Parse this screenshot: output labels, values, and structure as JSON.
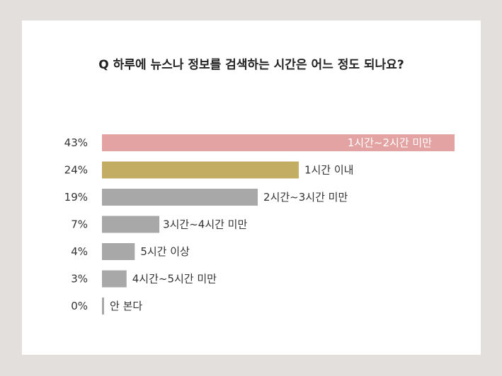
{
  "chart_data": {
    "type": "bar",
    "orientation": "horizontal",
    "title": "Q 하루에 뉴스나 정보를 검색하는 시간은 어느 정도 되나요?",
    "unit": "%",
    "categories": [
      "1시간~2시간 미만",
      "1시간 이내",
      "2시간~3시간 미만",
      "3시간~4시간 미만",
      "5시간 이상",
      "4시간~5시간 미만",
      "안 본다"
    ],
    "values": [
      43,
      24,
      19,
      7,
      4,
      3,
      0
    ],
    "value_labels": [
      "43%",
      "24%",
      "19%",
      "7%",
      "4%",
      "3%",
      "0%"
    ],
    "colors": [
      "#e4a3a3",
      "#c3ad63",
      "#a8a8a8",
      "#a8a8a8",
      "#a8a8a8",
      "#a8a8a8",
      "#a8a8a8"
    ],
    "grid": false,
    "legend": "none"
  }
}
